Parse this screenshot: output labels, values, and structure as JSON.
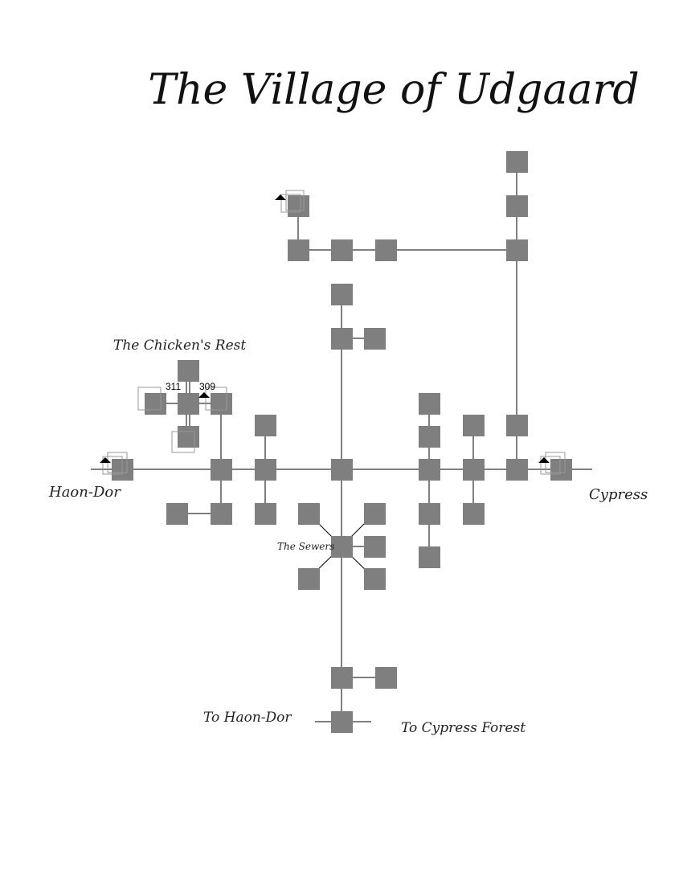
{
  "map": {
    "title": "The Village of Udgaard",
    "labels": {
      "chickens_rest": "The Chicken's Rest",
      "haon_dor": "Haon-Dor",
      "cypress": "Cypress",
      "sewers": "The Sewers",
      "to_haon_dor": "To Haon-Dor",
      "to_cypress_forest": "To Cypress Forest"
    },
    "room_numbers": [
      "311",
      "309"
    ],
    "colors": {
      "room": "#7f7f7f",
      "line": "#000000",
      "ghost": "#999999",
      "background": "#ffffff"
    }
  }
}
